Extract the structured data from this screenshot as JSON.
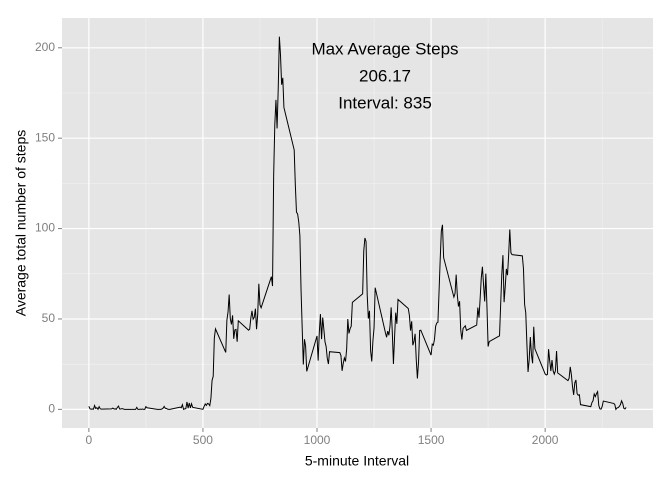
{
  "chart_data": {
    "type": "line",
    "x_label": "5-minute Interval",
    "y_label": "Average total number of steps",
    "annotation": [
      "Max Average Steps",
      "206.17",
      "Interval: 835"
    ],
    "color": "#000000",
    "grid": true,
    "xlim": [
      -117.75,
      2472.75
    ],
    "xticks": [
      0,
      500,
      1000,
      1500,
      2000
    ],
    "x_minor_ticks": [
      250,
      750,
      1250,
      1750,
      2250
    ],
    "ylim": [
      -10.31,
      216.48
    ],
    "yticks": [
      0,
      50,
      100,
      150,
      200
    ],
    "y_minor_ticks": [
      25,
      75,
      125,
      175
    ],
    "x": [
      0,
      5,
      10,
      15,
      20,
      25,
      30,
      35,
      40,
      45,
      50,
      55,
      100,
      105,
      110,
      115,
      120,
      125,
      130,
      135,
      140,
      145,
      150,
      155,
      200,
      205,
      210,
      215,
      220,
      225,
      230,
      235,
      240,
      245,
      250,
      255,
      300,
      305,
      310,
      315,
      320,
      325,
      330,
      335,
      340,
      345,
      350,
      355,
      400,
      405,
      410,
      415,
      420,
      425,
      430,
      435,
      440,
      445,
      450,
      455,
      500,
      505,
      510,
      515,
      520,
      525,
      530,
      535,
      540,
      545,
      550,
      555,
      600,
      605,
      610,
      615,
      620,
      625,
      630,
      635,
      640,
      645,
      650,
      655,
      700,
      705,
      710,
      715,
      720,
      725,
      730,
      735,
      740,
      745,
      750,
      755,
      800,
      805,
      810,
      815,
      820,
      825,
      830,
      835,
      840,
      845,
      850,
      855,
      900,
      905,
      910,
      915,
      920,
      925,
      930,
      935,
      940,
      945,
      950,
      955,
      1000,
      1005,
      1010,
      1015,
      1020,
      1025,
      1030,
      1035,
      1040,
      1045,
      1050,
      1055,
      1100,
      1105,
      1110,
      1115,
      1120,
      1125,
      1130,
      1135,
      1140,
      1145,
      1150,
      1155,
      1200,
      1205,
      1210,
      1215,
      1220,
      1225,
      1230,
      1235,
      1240,
      1245,
      1250,
      1255,
      1300,
      1305,
      1310,
      1315,
      1320,
      1325,
      1330,
      1335,
      1340,
      1345,
      1350,
      1355,
      1400,
      1405,
      1410,
      1415,
      1420,
      1425,
      1430,
      1435,
      1440,
      1445,
      1450,
      1455,
      1500,
      1505,
      1510,
      1515,
      1520,
      1525,
      1530,
      1535,
      1540,
      1545,
      1550,
      1555,
      1600,
      1605,
      1610,
      1615,
      1620,
      1625,
      1630,
      1635,
      1640,
      1645,
      1650,
      1655,
      1700,
      1705,
      1710,
      1715,
      1720,
      1725,
      1730,
      1735,
      1740,
      1745,
      1750,
      1755,
      1800,
      1805,
      1810,
      1815,
      1820,
      1825,
      1830,
      1835,
      1840,
      1845,
      1850,
      1855,
      1900,
      1905,
      1910,
      1915,
      1920,
      1925,
      1930,
      1935,
      1940,
      1945,
      1950,
      1955,
      2000,
      2005,
      2010,
      2015,
      2020,
      2025,
      2030,
      2035,
      2040,
      2045,
      2050,
      2055,
      2100,
      2105,
      2110,
      2115,
      2120,
      2125,
      2130,
      2135,
      2140,
      2145,
      2150,
      2155,
      2200,
      2205,
      2210,
      2215,
      2220,
      2225,
      2230,
      2235,
      2240,
      2245,
      2250,
      2255,
      2300,
      2305,
      2310,
      2315,
      2320,
      2325,
      2330,
      2335,
      2340,
      2345,
      2350,
      2355
    ],
    "values": [
      1.7,
      0.3,
      0.1,
      0.2,
      0.1,
      2.1,
      0.5,
      0.9,
      0,
      1.5,
      0.3,
      0.1,
      0.3,
      0.7,
      0.2,
      0.3,
      0,
      1.1,
      1.8,
      0.2,
      0.2,
      0.4,
      0.3,
      0,
      0,
      0,
      1.1,
      0,
      0,
      0.1,
      0,
      0.2,
      0,
      0,
      1.5,
      0.9,
      0,
      0,
      0,
      0,
      0.2,
      0.6,
      1.6,
      0.6,
      0.5,
      0.1,
      0,
      0,
      1.2,
      0.9,
      2.6,
      0,
      0.3,
      0.4,
      4.1,
      0.7,
      3.5,
      0.8,
      3.1,
      1.1,
      0,
      1.6,
      3,
      2.2,
      3.3,
      3,
      2.1,
      6.1,
      16,
      18.3,
      39.5,
      44.5,
      31.5,
      49.3,
      53.8,
      63.5,
      50,
      47,
      52,
      39,
      44,
      44.2,
      37.4,
      49,
      43.8,
      44.4,
      50.5,
      54.5,
      49.9,
      50.9,
      55.7,
      44.3,
      52.3,
      69.5,
      57.8,
      56.2,
      73.4,
      68.2,
      129.4,
      157.5,
      171.2,
      155.4,
      177.3,
      206.17,
      195.9,
      179.6,
      183.4,
      167,
      143.5,
      124,
      109.1,
      108.1,
      103.7,
      95.97,
      66.2,
      45.2,
      24.8,
      38.8,
      35,
      21,
      40.6,
      27,
      42.4,
      52.7,
      38.9,
      50.8,
      44.3,
      37.4,
      34.7,
      28.3,
      25.1,
      31.9,
      31.4,
      29.7,
      21.3,
      25.5,
      28.4,
      26.5,
      33.4,
      49.98,
      42,
      44.6,
      46,
      59.2,
      63.9,
      87.7,
      94.8,
      92.8,
      63.4,
      50.2,
      54.5,
      32.4,
      26.5,
      37.7,
      45.1,
      67.3,
      42.3,
      39.9,
      43.3,
      40.98,
      46.2,
      56.4,
      42.8,
      25.1,
      39.97,
      53.5,
      47.3,
      60.8,
      55.8,
      51.96,
      43.6,
      48.7,
      35.5,
      37.5,
      41.8,
      27.5,
      17.1,
      26.1,
      43.6,
      43.8,
      30,
      36.1,
      35.5,
      38.8,
      45.96,
      47.8,
      48.1,
      65.3,
      82.9,
      98.7,
      102.1,
      83.96,
      62.1,
      64.1,
      74.5,
      63.2,
      56.9,
      59.8,
      43.9,
      38.6,
      44.7,
      45.5,
      46.2,
      43.7,
      46.6,
      56.3,
      50.7,
      61.2,
      72.7,
      78.9,
      68.9,
      59.7,
      75.1,
      56.5,
      34.8,
      37.5,
      40.7,
      58,
      74.7,
      85.3,
      59.3,
      67.8,
      77.7,
      74.2,
      85.3,
      99.5,
      86.6,
      85.6,
      84.9,
      77.8,
      58,
      53.4,
      36.3,
      20.7,
      27.4,
      40,
      30.2,
      25.5,
      45.7,
      33.5,
      19.6,
      19,
      19.3,
      33.3,
      26.8,
      21.2,
      27.3,
      21.3,
      19.5,
      21.3,
      32.3,
      20.2,
      15.9,
      17.2,
      23.5,
      19.2,
      12.5,
      8,
      14.7,
      16.3,
      8.7,
      7.8,
      8.1,
      2.6,
      1.5,
      3.7,
      4.8,
      8.5,
      7.1,
      8.7,
      9.8,
      2.2,
      0.3,
      0.1,
      1.6,
      4.6,
      3.3,
      2.8,
      0,
      0.8,
      0.96,
      1.6,
      2.6,
      4.7,
      3.3,
      0.6,
      0.2,
      1.1
    ]
  }
}
